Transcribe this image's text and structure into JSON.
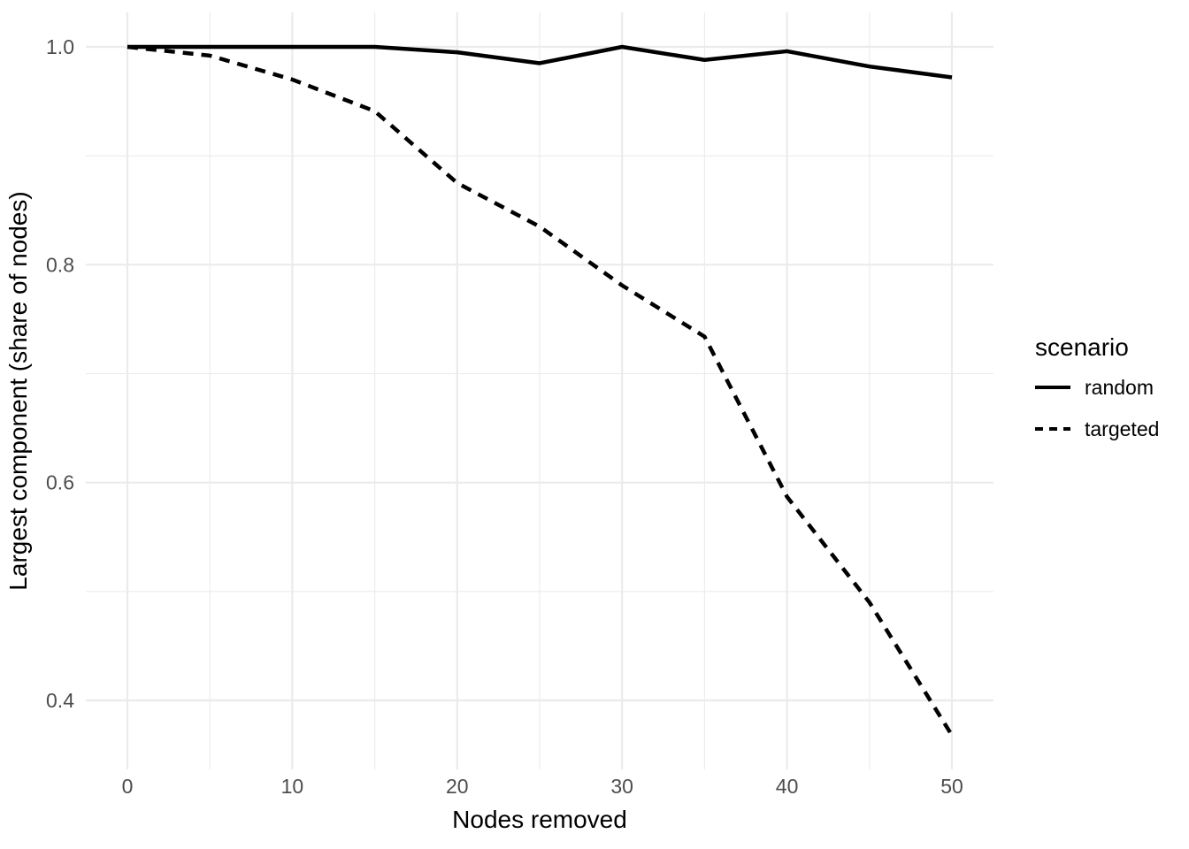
{
  "chart_data": {
    "type": "line",
    "title": "",
    "xlabel": "Nodes removed",
    "ylabel": "Largest component (share of nodes)",
    "x": [
      0,
      5,
      10,
      15,
      20,
      25,
      30,
      35,
      40,
      45,
      50
    ],
    "series": [
      {
        "name": "random",
        "linetype": "solid",
        "values": [
          1.0,
          1.0,
          1.0,
          1.0,
          0.995,
          0.985,
          1.0,
          0.988,
          0.996,
          0.982,
          0.972
        ]
      },
      {
        "name": "targeted",
        "linetype": "dashed",
        "values": [
          1.0,
          0.992,
          0.97,
          0.941,
          0.875,
          0.835,
          0.781,
          0.734,
          0.587,
          0.49,
          0.368
        ]
      }
    ],
    "xlim": [
      0,
      50
    ],
    "ylim_data": [
      0.368,
      1.0
    ],
    "x_ticks": [
      0,
      10,
      20,
      30,
      40,
      50
    ],
    "x_tick_labels": [
      "0",
      "10",
      "20",
      "30",
      "40",
      "50"
    ],
    "x_minor": [
      5,
      15,
      25,
      35,
      45
    ],
    "y_ticks": [
      0.4,
      0.6,
      0.8,
      1.0
    ],
    "y_tick_labels": [
      "0.4",
      "0.6",
      "0.8",
      "1.0"
    ],
    "y_minor": [
      0.5,
      0.7,
      0.9
    ],
    "grid": true,
    "legend": {
      "title": "scenario",
      "position": "right",
      "entries": [
        {
          "label": "random",
          "linetype": "solid"
        },
        {
          "label": "targeted",
          "linetype": "dashed"
        }
      ]
    },
    "colors": {
      "line": "#000000",
      "grid_major": "#ebebeb",
      "grid_minor": "#ebebeb",
      "axis_text": "#4d4d4d",
      "axis_title": "#000000",
      "background": "#ffffff"
    }
  }
}
